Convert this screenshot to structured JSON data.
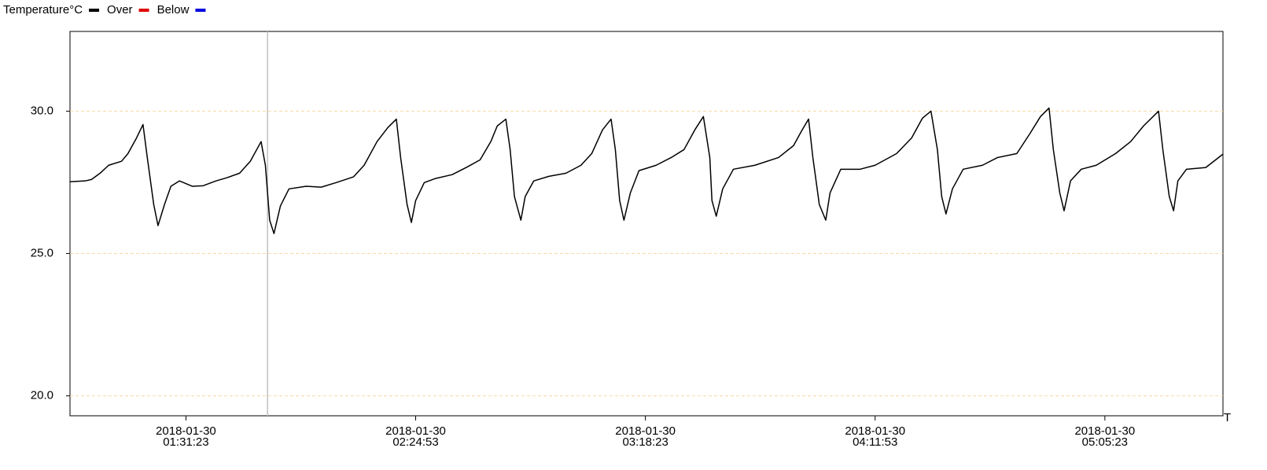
{
  "chart_data": {
    "type": "line",
    "x_label": "T",
    "xlim": [
      "2018-01-30 01:04:23",
      "2018-01-30 05:32:53"
    ],
    "xticks": [
      "2018-01-30 01:31:23",
      "2018-01-30 02:24:53",
      "2018-01-30 03:18:23",
      "2018-01-30 04:11:53",
      "2018-01-30 05:05:23"
    ],
    "ylim": [
      19.3,
      32.8
    ],
    "yticks": [
      {
        "value": 20,
        "label": "20.0"
      },
      {
        "value": 25,
        "label": "25.0"
      },
      {
        "value": 30,
        "label": "30.0"
      }
    ],
    "grid": true,
    "grid_color": "#f8d9a8",
    "vline": "2018-01-30 01:50:23",
    "x": [
      "2018-01-30 01:04:23",
      "2018-01-30 01:07:53",
      "2018-01-30 01:09:23",
      "2018-01-30 01:11:23",
      "2018-01-30 01:13:23",
      "2018-01-30 01:16:23",
      "2018-01-30 01:17:53",
      "2018-01-30 01:19:53",
      "2018-01-30 01:21:23",
      "2018-01-30 01:22:23",
      "2018-01-30 01:23:53",
      "2018-01-30 01:24:53",
      "2018-01-30 01:26:23",
      "2018-01-30 01:27:53",
      "2018-01-30 01:29:53",
      "2018-01-30 01:32:53",
      "2018-01-30 01:35:23",
      "2018-01-30 01:38:23",
      "2018-01-30 01:40:53",
      "2018-01-30 01:43:53",
      "2018-01-30 01:46:23",
      "2018-01-30 01:48:53",
      "2018-01-30 01:49:53",
      "2018-01-30 01:50:53",
      "2018-01-30 01:51:53",
      "2018-01-30 01:53:23",
      "2018-01-30 01:55:23",
      "2018-01-30 01:59:23",
      "2018-01-30 02:02:53",
      "2018-01-30 02:06:23",
      "2018-01-30 02:10:23",
      "2018-01-30 02:12:53",
      "2018-01-30 02:15:53",
      "2018-01-30 02:18:23",
      "2018-01-30 02:20:23",
      "2018-01-30 02:21:23",
      "2018-01-30 02:22:53",
      "2018-01-30 02:23:53",
      "2018-01-30 02:24:53",
      "2018-01-30 02:26:53",
      "2018-01-30 02:29:23",
      "2018-01-30 02:33:23",
      "2018-01-30 02:36:53",
      "2018-01-30 02:39:53",
      "2018-01-30 02:42:23",
      "2018-01-30 02:43:53",
      "2018-01-30 02:45:53",
      "2018-01-30 02:46:53",
      "2018-01-30 02:47:53",
      "2018-01-30 02:49:23",
      "2018-01-30 02:50:23",
      "2018-01-30 02:52:23",
      "2018-01-30 02:55:53",
      "2018-01-30 02:59:53",
      "2018-01-30 03:03:23",
      "2018-01-30 03:05:53",
      "2018-01-30 03:08:23",
      "2018-01-30 03:10:23",
      "2018-01-30 03:11:23",
      "2018-01-30 03:12:23",
      "2018-01-30 03:13:23",
      "2018-01-30 03:14:53",
      "2018-01-30 03:16:53",
      "2018-01-30 03:20:53",
      "2018-01-30 03:24:23",
      "2018-01-30 03:27:23",
      "2018-01-30 03:29:53",
      "2018-01-30 03:31:53",
      "2018-01-30 03:33:23",
      "2018-01-30 03:33:53",
      "2018-01-30 03:34:53",
      "2018-01-30 03:36:23",
      "2018-01-30 03:38:53",
      "2018-01-30 03:43:53",
      "2018-01-30 03:49:23",
      "2018-01-30 03:52:53",
      "2018-01-30 03:54:53",
      "2018-01-30 03:56:23",
      "2018-01-30 03:57:23",
      "2018-01-30 03:58:53",
      "2018-01-30 04:00:23",
      "2018-01-30 04:01:23",
      "2018-01-30 04:03:53",
      "2018-01-30 04:08:23",
      "2018-01-30 04:11:53",
      "2018-01-30 04:16:53",
      "2018-01-30 04:20:23",
      "2018-01-30 04:22:53",
      "2018-01-30 04:24:53",
      "2018-01-30 04:26:23",
      "2018-01-30 04:27:23",
      "2018-01-30 04:28:23",
      "2018-01-30 04:29:53",
      "2018-01-30 04:32:23",
      "2018-01-30 04:36:53",
      "2018-01-30 04:40:23",
      "2018-01-30 04:44:53",
      "2018-01-30 04:47:53",
      "2018-01-30 04:50:23",
      "2018-01-30 04:52:23",
      "2018-01-30 04:53:23",
      "2018-01-30 04:54:53",
      "2018-01-30 04:55:53",
      "2018-01-30 04:57:23",
      "2018-01-30 04:59:53",
      "2018-01-30 05:03:23",
      "2018-01-30 05:07:53",
      "2018-01-30 05:11:23",
      "2018-01-30 05:14:23",
      "2018-01-30 05:17:53",
      "2018-01-30 05:18:53",
      "2018-01-30 05:20:23",
      "2018-01-30 05:21:23",
      "2018-01-30 05:22:23",
      "2018-01-30 05:24:23",
      "2018-01-30 05:28:53",
      "2018-01-30 05:32:53"
    ],
    "series": [
      {
        "name": "Temperature°C",
        "color": "#000000",
        "values": [
          27.52,
          27.55,
          27.6,
          27.82,
          28.1,
          28.24,
          28.51,
          29.06,
          29.53,
          28.37,
          26.72,
          25.98,
          26.72,
          27.36,
          27.55,
          27.36,
          27.38,
          27.55,
          27.66,
          27.82,
          28.24,
          28.93,
          28.1,
          26.17,
          25.7,
          26.67,
          27.27,
          27.36,
          27.33,
          27.49,
          27.69,
          28.1,
          28.93,
          29.42,
          29.72,
          28.37,
          26.72,
          26.09,
          26.86,
          27.49,
          27.63,
          27.77,
          28.04,
          28.29,
          28.93,
          29.48,
          29.72,
          28.65,
          27.0,
          26.17,
          27.0,
          27.55,
          27.71,
          27.82,
          28.1,
          28.51,
          29.34,
          29.72,
          28.65,
          26.86,
          26.17,
          27.13,
          27.91,
          28.1,
          28.37,
          28.65,
          29.34,
          29.81,
          28.37,
          26.86,
          26.31,
          27.27,
          27.96,
          28.1,
          28.37,
          28.79,
          29.34,
          29.72,
          28.37,
          26.72,
          26.17,
          27.13,
          27.96,
          27.96,
          28.1,
          28.51,
          29.06,
          29.75,
          30.0,
          28.65,
          27.0,
          26.39,
          27.27,
          27.96,
          28.1,
          28.37,
          28.51,
          29.2,
          29.81,
          30.11,
          28.65,
          27.13,
          26.5,
          27.55,
          27.96,
          28.1,
          28.51,
          28.93,
          29.48,
          30.0,
          28.65,
          27.0,
          26.5,
          27.55,
          27.96,
          28.02,
          28.49
        ]
      }
    ],
    "legend": [
      {
        "name": "Over",
        "color": "#e00000"
      },
      {
        "name": "Below",
        "color": "#0000e0"
      }
    ]
  }
}
